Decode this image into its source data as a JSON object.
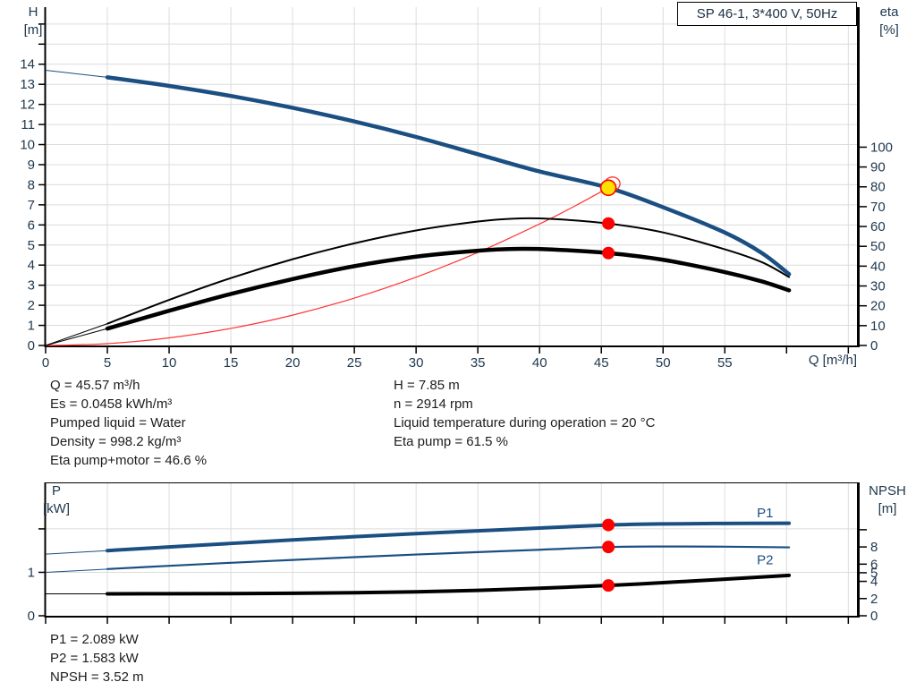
{
  "title_box": "SP 46-1, 3*400 V, 50Hz",
  "axis_corner_labels": {
    "h": [
      "H",
      "[m]"
    ],
    "eta": [
      "eta",
      "[%]"
    ],
    "q": "Q [m³/h]",
    "p": [
      "P",
      "[kW]"
    ],
    "npsh": [
      "NPSH",
      "[m]"
    ]
  },
  "info_top_left": [
    "Q = 45.57 m³/h",
    "Es = 0.0458 kWh/m³",
    "Pumped liquid = Water",
    "Density = 998.2 kg/m³",
    "Eta pump+motor = 46.6 %"
  ],
  "info_top_right": [
    "H = 7.85 m",
    "n = 2914 rpm",
    "Liquid temperature during operation = 20 °C",
    "Eta pump = 61.5 %"
  ],
  "info_bottom": [
    "P1 = 2.089 kW",
    "P2 = 1.583 kW",
    "NPSH = 3.52 m"
  ],
  "colors": {
    "curve_blue": "#1b4f82",
    "curve_black": "#000000",
    "system_red": "#ff3333",
    "marker_red": "#ff0000",
    "duty_yellow": "#ffe100",
    "gridline": "#dcdcdc",
    "tick_text": "#20394f"
  },
  "chart_data": [
    {
      "type": "line",
      "name": "head-efficiency-chart",
      "title": "SP 46-1, 3*400 V, 50Hz",
      "x": {
        "label": "Q [m³/h]",
        "min": 0,
        "max": 65.7,
        "major_ticks": [
          0,
          5,
          10,
          15,
          20,
          25,
          30,
          35,
          40,
          45,
          50,
          55
        ],
        "minor_ticks": [
          60,
          65
        ],
        "grid": [
          5,
          10,
          15,
          20,
          25,
          30,
          35,
          40,
          45,
          50,
          55,
          60,
          65
        ]
      },
      "y_left": {
        "label": "H [m]",
        "min": 0,
        "max": 16.84,
        "major_ticks": [
          0,
          1,
          2,
          3,
          4,
          5,
          6,
          7,
          8,
          9,
          10,
          11,
          12,
          13,
          14
        ],
        "minor_ticks": [
          15,
          16
        ],
        "grid": [
          1,
          2,
          3,
          4,
          5,
          6,
          7,
          8,
          9,
          10,
          11,
          12,
          13,
          14,
          15,
          16
        ]
      },
      "y_right": {
        "label": "eta [%]",
        "min": 0,
        "max": 170.6,
        "major_ticks": [
          0,
          10,
          20,
          30,
          40,
          50,
          60,
          70,
          80,
          90,
          100
        ],
        "minor_ticks": []
      },
      "series": [
        {
          "name": "system-curve",
          "axis": "left",
          "color": "#ff3333",
          "width": 1.2,
          "points": [
            [
              0,
              0
            ],
            [
              5,
              0.09
            ],
            [
              10,
              0.38
            ],
            [
              15,
              0.85
            ],
            [
              20,
              1.51
            ],
            [
              25,
              2.36
            ],
            [
              30,
              3.4
            ],
            [
              35,
              4.63
            ],
            [
              40,
              6.05
            ],
            [
              43,
              6.99
            ],
            [
              45.57,
              7.85
            ]
          ]
        },
        {
          "name": "eta-pump",
          "axis": "right",
          "color": "#000000",
          "width": 2,
          "thin_until": 5,
          "points": [
            [
              0,
              0
            ],
            [
              5,
              11
            ],
            [
              10,
              23
            ],
            [
              15,
              34
            ],
            [
              20,
              43.5
            ],
            [
              25,
              51.5
            ],
            [
              30,
              58
            ],
            [
              35,
              62.5
            ],
            [
              38,
              64
            ],
            [
              41,
              63.8
            ],
            [
              45.57,
              61.5
            ],
            [
              50,
              57
            ],
            [
              55,
              48.5
            ],
            [
              58,
              42
            ],
            [
              60.2,
              34.5
            ]
          ]
        },
        {
          "name": "eta-pump-motor",
          "axis": "right",
          "color": "#000000",
          "width": 4.5,
          "thin_until": 5,
          "points": [
            [
              0,
              0
            ],
            [
              5,
              8.5
            ],
            [
              10,
              17.5
            ],
            [
              15,
              26
            ],
            [
              20,
              33.5
            ],
            [
              25,
              40
            ],
            [
              30,
              44.8
            ],
            [
              35,
              47.8
            ],
            [
              38,
              48.7
            ],
            [
              41,
              48.4
            ],
            [
              45.57,
              46.6
            ],
            [
              50,
              43.2
            ],
            [
              55,
              37
            ],
            [
              58,
              32.3
            ],
            [
              60.2,
              27.8
            ]
          ]
        },
        {
          "name": "head",
          "axis": "left",
          "color": "#1b4f82",
          "width": 4.5,
          "thin_until": 5,
          "points": [
            [
              0,
              13.7
            ],
            [
              5,
              13.35
            ],
            [
              10,
              12.92
            ],
            [
              15,
              12.42
            ],
            [
              20,
              11.83
            ],
            [
              25,
              11.15
            ],
            [
              30,
              10.38
            ],
            [
              35,
              9.52
            ],
            [
              40,
              8.66
            ],
            [
              45.57,
              7.85
            ],
            [
              50,
              6.88
            ],
            [
              55,
              5.62
            ],
            [
              58,
              4.6
            ],
            [
              60.2,
              3.55
            ]
          ]
        }
      ],
      "markers": [
        {
          "name": "duty-ring",
          "shape": "ring",
          "axis": "left",
          "q": 45.9,
          "v": 8.05,
          "rx": 8.5,
          "ry": 7.5,
          "stroke": "#ff3333"
        },
        {
          "name": "eta-pump-point",
          "shape": "dot",
          "axis": "right",
          "q": 45.57,
          "v": 61.5,
          "r": 7,
          "fill": "#ff0000"
        },
        {
          "name": "eta-pump-motor-point",
          "shape": "dot",
          "axis": "right",
          "q": 45.57,
          "v": 46.6,
          "r": 7,
          "fill": "#ff0000"
        },
        {
          "name": "duty-point",
          "shape": "dot",
          "axis": "left",
          "q": 45.57,
          "v": 7.85,
          "r": 8.5,
          "fill": "#ffe100",
          "stroke": "#ff0000",
          "stroke_width": 1.6
        }
      ],
      "annotations": []
    },
    {
      "type": "line",
      "name": "power-npsh-chart",
      "title": "",
      "x": {
        "label": "",
        "min": 0,
        "max": 65.7,
        "major_ticks": [],
        "minor_ticks": [
          0,
          5,
          10,
          15,
          20,
          25,
          30,
          35,
          40,
          45,
          50,
          55,
          60,
          65
        ],
        "grid": [
          5,
          10,
          15,
          20,
          25,
          30,
          35,
          40,
          45,
          50,
          55,
          60,
          65
        ]
      },
      "y_left": {
        "label": "P [kW]",
        "min": 0,
        "max": 3.07,
        "major_ticks": [
          0,
          1
        ],
        "minor_ticks": [
          2
        ],
        "grid": [
          1,
          2
        ]
      },
      "y_right": {
        "label": "NPSH [m]",
        "min": 0,
        "max": 15.5,
        "major_ticks": [
          0,
          2,
          4,
          5,
          6,
          8
        ],
        "minor_ticks": [
          10
        ]
      },
      "series": [
        {
          "name": "P1",
          "axis": "left",
          "color": "#1b4f82",
          "width": 4,
          "thin_until": 5,
          "points": [
            [
              0,
              1.42
            ],
            [
              5,
              1.5
            ],
            [
              10,
              1.585
            ],
            [
              15,
              1.665
            ],
            [
              20,
              1.745
            ],
            [
              25,
              1.82
            ],
            [
              30,
              1.89
            ],
            [
              35,
              1.955
            ],
            [
              40,
              2.02
            ],
            [
              45.57,
              2.089
            ],
            [
              50,
              2.115
            ],
            [
              55,
              2.125
            ],
            [
              60.2,
              2.13
            ]
          ]
        },
        {
          "name": "P2",
          "axis": "left",
          "color": "#1b4f82",
          "width": 2.2,
          "thin_until": 5,
          "points": [
            [
              0,
              1.0
            ],
            [
              5,
              1.075
            ],
            [
              10,
              1.15
            ],
            [
              15,
              1.22
            ],
            [
              20,
              1.285
            ],
            [
              25,
              1.35
            ],
            [
              30,
              1.41
            ],
            [
              35,
              1.465
            ],
            [
              40,
              1.52
            ],
            [
              45.57,
              1.583
            ],
            [
              50,
              1.595
            ],
            [
              55,
              1.59
            ],
            [
              60.2,
              1.575
            ]
          ]
        },
        {
          "name": "NPSH",
          "axis": "right",
          "color": "#000000",
          "width": 4,
          "thin_until": 5,
          "points": [
            [
              0,
              2.55
            ],
            [
              5,
              2.55
            ],
            [
              10,
              2.56
            ],
            [
              15,
              2.58
            ],
            [
              20,
              2.62
            ],
            [
              25,
              2.68
            ],
            [
              30,
              2.78
            ],
            [
              35,
              2.95
            ],
            [
              40,
              3.2
            ],
            [
              45.57,
              3.52
            ],
            [
              50,
              3.85
            ],
            [
              55,
              4.25
            ],
            [
              60.2,
              4.7
            ]
          ]
        }
      ],
      "markers": [
        {
          "name": "p1-point",
          "shape": "dot",
          "axis": "left",
          "q": 45.57,
          "v": 2.089,
          "r": 7,
          "fill": "#ff0000"
        },
        {
          "name": "p2-point",
          "shape": "dot",
          "axis": "left",
          "q": 45.57,
          "v": 1.583,
          "r": 7,
          "fill": "#ff0000"
        },
        {
          "name": "npsh-point",
          "shape": "dot",
          "axis": "right",
          "q": 45.57,
          "v": 3.52,
          "r": 7,
          "fill": "#ff0000"
        }
      ],
      "annotations": [
        {
          "text": "P1",
          "q": 57.6,
          "v": 2.27,
          "axis": "left",
          "color": "#1b4f82"
        },
        {
          "text": "P2",
          "q": 57.6,
          "v": 1.18,
          "axis": "left",
          "color": "#1b4f82"
        }
      ]
    }
  ]
}
